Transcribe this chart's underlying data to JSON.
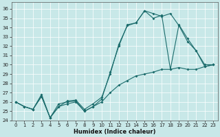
{
  "xlabel": "Humidex (Indice chaleur)",
  "bg_color": "#c8e8e8",
  "line_color": "#1a6b6b",
  "xlim": [
    -0.5,
    23.5
  ],
  "ylim": [
    24,
    36.7
  ],
  "yticks": [
    24,
    25,
    26,
    27,
    28,
    29,
    30,
    31,
    32,
    33,
    34,
    35,
    36
  ],
  "xticks": [
    0,
    1,
    2,
    3,
    4,
    5,
    6,
    7,
    8,
    9,
    10,
    11,
    12,
    13,
    14,
    15,
    16,
    17,
    18,
    19,
    20,
    21,
    22,
    23
  ],
  "series": [
    {
      "x": [
        0,
        1,
        2,
        3,
        4,
        5,
        6,
        7,
        8,
        9,
        10,
        11,
        12,
        13,
        14,
        15,
        16,
        17,
        18,
        19,
        20,
        21,
        22,
        23
      ],
      "y": [
        26.0,
        25.5,
        25.2,
        26.6,
        24.3,
        25.8,
        26.0,
        26.1,
        25.0,
        25.5,
        26.3,
        29.2,
        32.0,
        34.3,
        34.5,
        35.8,
        35.5,
        35.2,
        35.5,
        34.2,
        32.5,
        31.5,
        29.8,
        30.0
      ]
    },
    {
      "x": [
        0,
        1,
        2,
        3,
        4,
        5,
        6,
        7,
        8,
        9,
        10,
        11,
        12,
        13,
        14,
        15,
        16,
        17,
        18,
        19,
        20,
        21,
        22,
        23
      ],
      "y": [
        26.0,
        25.5,
        25.2,
        26.8,
        24.3,
        25.5,
        26.1,
        26.2,
        25.2,
        25.8,
        26.5,
        29.0,
        32.2,
        34.2,
        34.5,
        35.8,
        35.0,
        35.3,
        29.5,
        34.3,
        32.8,
        31.5,
        30.0,
        30.0
      ]
    },
    {
      "x": [
        0,
        1,
        2,
        3,
        4,
        5,
        6,
        7,
        8,
        9,
        10,
        11,
        12,
        13,
        14,
        15,
        16,
        17,
        18,
        19,
        20,
        21,
        22,
        23
      ],
      "y": [
        26.0,
        25.5,
        25.2,
        26.6,
        24.3,
        25.5,
        25.8,
        26.0,
        25.0,
        25.5,
        26.0,
        27.0,
        27.8,
        28.3,
        28.8,
        29.0,
        29.2,
        29.5,
        29.5,
        29.7,
        29.5,
        29.5,
        29.8,
        30.0
      ]
    }
  ]
}
